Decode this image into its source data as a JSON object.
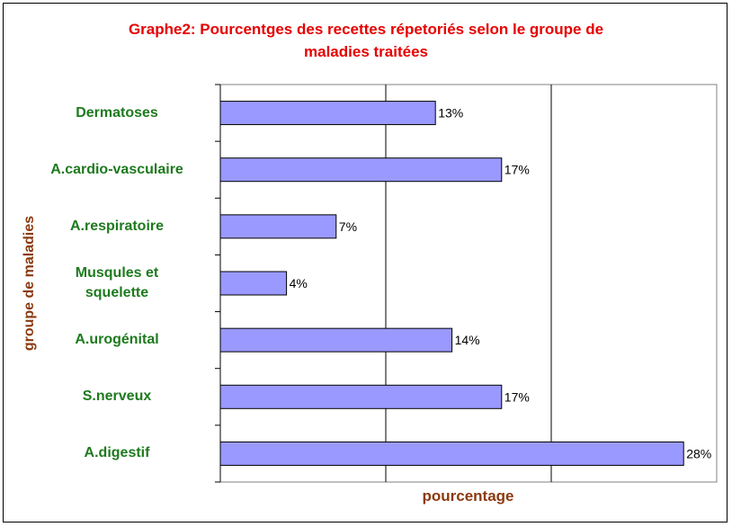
{
  "chart_data": {
    "type": "bar",
    "orientation": "horizontal",
    "title": "Graphe2: Pourcentges des recettes répetoriés selon le groupe de\nmaladies traitées",
    "xlabel": "pourcentage",
    "ylabel": "groupe de maladies",
    "categories": [
      "Dermatoses",
      "A.cardio-vasculaire",
      "A.respiratoire",
      "Musqules et\nsquelette",
      "A.urogénital",
      "S.nerveux",
      "A.digestif"
    ],
    "values": [
      13,
      17,
      7,
      4,
      14,
      17,
      28
    ],
    "data_labels": [
      "13%",
      "17%",
      "7%",
      "4%",
      "14%",
      "17%",
      "28%"
    ],
    "xlim": [
      0,
      30
    ],
    "x_gridlines": [
      10,
      20
    ],
    "grid": true,
    "legend": "none",
    "colors": {
      "bar_fill": "#9999ff",
      "bar_stroke": "#000000",
      "title": "#e60000",
      "category_label": "#1e7a1e",
      "axis_title": "#8b3a0f"
    }
  }
}
